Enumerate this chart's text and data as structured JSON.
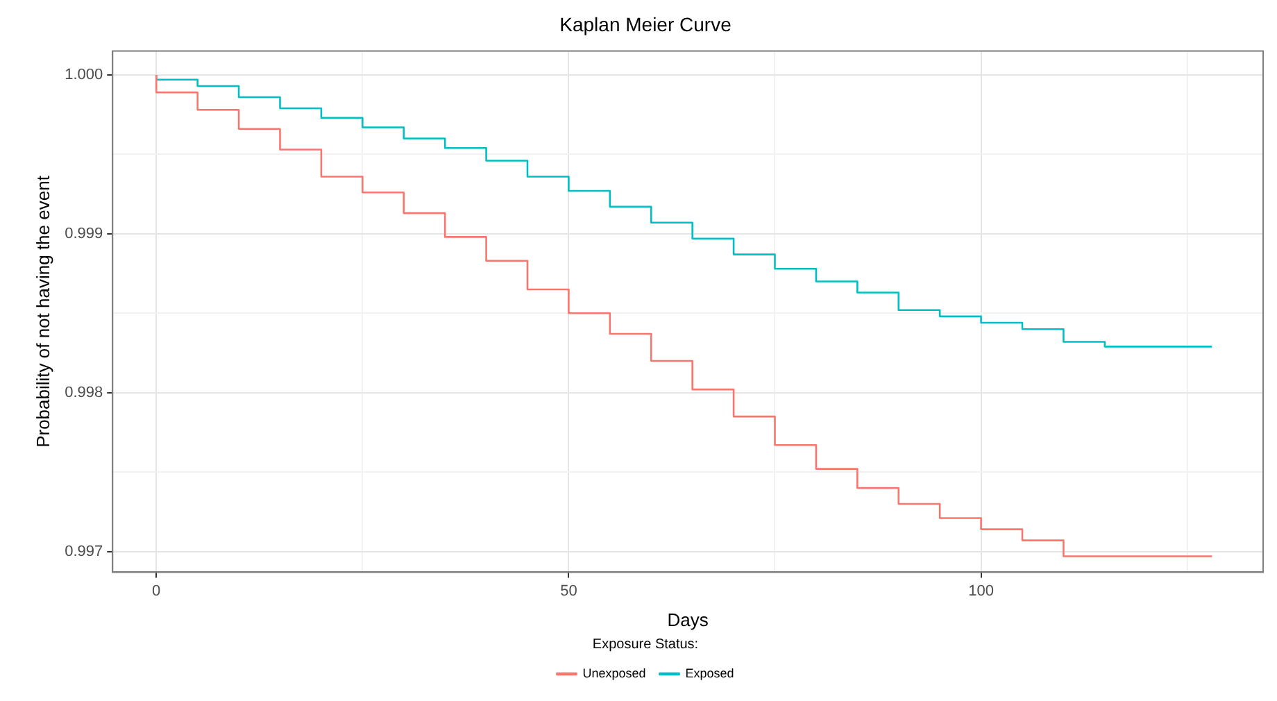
{
  "chart_data": {
    "type": "step",
    "title": "Kaplan Meier Curve",
    "xlabel": "Days",
    "ylabel": "Probability of not having the event",
    "legend_title": "Exposure Status:",
    "legend": "bottom",
    "grid": true,
    "xlim": [
      -5.3,
      134.2
    ],
    "xticks": [
      0,
      {
        "value": 25,
        "label": null
      },
      50,
      {
        "value": 75,
        "label": null
      },
      100,
      {
        "value": 125,
        "label": null
      }
    ],
    "ylim": [
      0.99687,
      1.00015
    ],
    "yticks": [
      {
        "value": 0.997,
        "label": "0.997"
      },
      {
        "value": 0.9975,
        "label": null
      },
      {
        "value": 0.998,
        "label": "0.998"
      },
      {
        "value": 0.9985,
        "label": null
      },
      {
        "value": 0.999,
        "label": "0.999"
      },
      {
        "value": 0.9995,
        "label": null
      },
      {
        "value": 1.0,
        "label": "1.000"
      }
    ],
    "series": [
      {
        "name": "Unexposed",
        "color": "#f8766d",
        "x": [
          0,
          5,
          10,
          15,
          20,
          25,
          30,
          35,
          40,
          45,
          50,
          55,
          60,
          65,
          70,
          75,
          80,
          85,
          90,
          95,
          100,
          105,
          110,
          115,
          128
        ],
        "values": [
          1.0,
          0.99989,
          0.99978,
          0.99966,
          0.99953,
          0.99936,
          0.99926,
          0.99913,
          0.99898,
          0.99883,
          0.99865,
          0.9985,
          0.99837,
          0.9982,
          0.99802,
          0.99785,
          0.99767,
          0.99752,
          0.9974,
          0.9973,
          0.99721,
          0.99714,
          0.99707,
          0.99697,
          0.99697
        ]
      },
      {
        "name": "Exposed",
        "color": "#00bfc4",
        "x": [
          0,
          5,
          10,
          15,
          20,
          25,
          30,
          35,
          40,
          45,
          50,
          55,
          60,
          65,
          70,
          75,
          80,
          85,
          90,
          95,
          100,
          105,
          110,
          115,
          118,
          128
        ],
        "values": [
          1.0,
          0.99997,
          0.99993,
          0.99986,
          0.99979,
          0.99973,
          0.99967,
          0.9996,
          0.99954,
          0.99946,
          0.99936,
          0.99927,
          0.99917,
          0.99907,
          0.99897,
          0.99887,
          0.99878,
          0.9987,
          0.99863,
          0.99852,
          0.99848,
          0.99844,
          0.9984,
          0.99832,
          0.99829,
          0.99829
        ]
      }
    ]
  }
}
